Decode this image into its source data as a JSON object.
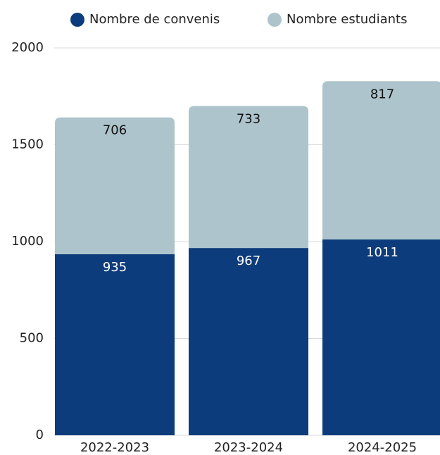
{
  "chart_data": {
    "type": "stacked_bar",
    "categories": [
      "2022-2023",
      "2023-2024",
      "2024-2025"
    ],
    "series": [
      {
        "name": "Nombre de convenis",
        "color": "#0d3c7c",
        "values": [
          935,
          967,
          1011
        ]
      },
      {
        "name": "Nombre estudiants",
        "color": "#adc4cc",
        "values": [
          706,
          733,
          817
        ]
      }
    ],
    "ylim": [
      0,
      2000
    ],
    "yticks": [
      0,
      500,
      1000,
      1500,
      2000
    ],
    "grid": true
  }
}
